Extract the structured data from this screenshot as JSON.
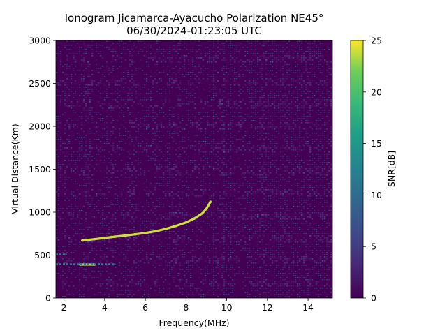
{
  "chart_data": {
    "type": "heatmap",
    "title": "Ionogram Jicamarca-Ayacucho Polarization NE45°",
    "subtitle": "06/30/2024-01:23:05 UTC",
    "xlabel": "Frequency(MHz)",
    "ylabel": "Virtual Distance(Km)",
    "xlim": [
      1.6,
      15.2
    ],
    "ylim": [
      0,
      3000
    ],
    "x_ticks": [
      2,
      4,
      6,
      8,
      10,
      12,
      14
    ],
    "y_ticks": [
      0,
      500,
      1000,
      1500,
      2000,
      2500,
      3000
    ],
    "colorbar": {
      "label": "SNR[dB]",
      "range": [
        0,
        25
      ],
      "ticks": [
        0,
        5,
        10,
        15,
        20,
        25
      ],
      "colormap": "viridis"
    },
    "noise_floor_db": [
      0,
      5
    ],
    "traces": [
      {
        "description": "main F-layer echo trace",
        "snr_db": 24,
        "points": [
          [
            2.9,
            670
          ],
          [
            3.5,
            685
          ],
          [
            4.0,
            700
          ],
          [
            4.5,
            715
          ],
          [
            5.0,
            728
          ],
          [
            5.5,
            742
          ],
          [
            6.0,
            758
          ],
          [
            6.5,
            778
          ],
          [
            7.0,
            805
          ],
          [
            7.5,
            840
          ],
          [
            8.0,
            880
          ],
          [
            8.4,
            925
          ],
          [
            8.8,
            985
          ],
          [
            9.0,
            1040
          ],
          [
            9.2,
            1120
          ]
        ]
      },
      {
        "description": "low-altitude echo segment near 400 km",
        "snr_db": 23,
        "points": [
          [
            2.8,
            390
          ],
          [
            3.5,
            390
          ]
        ]
      },
      {
        "description": "weak trace near 400 km",
        "snr_db": 12,
        "points": [
          [
            1.6,
            395
          ],
          [
            2.8,
            395
          ],
          [
            3.5,
            395
          ],
          [
            4.5,
            395
          ]
        ]
      },
      {
        "description": "weak trace near 510 km",
        "snr_db": 11,
        "points": [
          [
            1.6,
            510
          ],
          [
            2.1,
            510
          ]
        ]
      }
    ],
    "vertical_interference_mhz": [
      9.4,
      9.9,
      10.2,
      7.2
    ]
  }
}
